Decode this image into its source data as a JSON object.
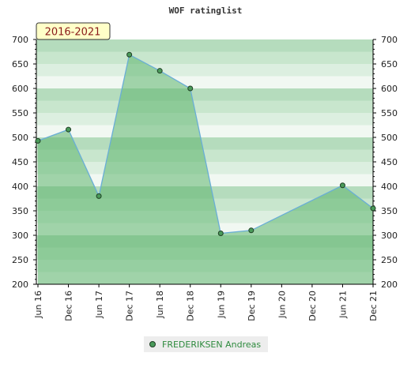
{
  "chart_data": {
    "type": "area",
    "title": "WOF ratinglist",
    "badge": "2016-2021",
    "xlabel": "",
    "ylabel": "",
    "x_ticks": [
      "Jun 16",
      "Dec 16",
      "Jun 17",
      "Dec 17",
      "Jun 18",
      "Dec 18",
      "Jun 19",
      "Dec 19",
      "Jun 20",
      "Dec 20",
      "Jun 21",
      "Dec 21"
    ],
    "ylim": [
      200,
      700
    ],
    "y_ticks": [
      200,
      250,
      300,
      350,
      400,
      450,
      500,
      550,
      600,
      650,
      700
    ],
    "y_tick_labels": [
      "200",
      "250",
      "300",
      "350",
      "400",
      "450",
      "500",
      "550",
      "600",
      "650",
      "700"
    ],
    "grid": true,
    "legend_position": "bottom-center",
    "series": [
      {
        "name": "FREDERIKSEN Andreas",
        "color": "#4a9a5a",
        "points": [
          {
            "x": "Jun 16",
            "y": 493
          },
          {
            "x": "Dec 16",
            "y": 516
          },
          {
            "x": "Jun 17",
            "y": 380
          },
          {
            "x": "Dec 17",
            "y": 669
          },
          {
            "x": "Jun 18",
            "y": 636
          },
          {
            "x": "Dec 18",
            "y": 600
          },
          {
            "x": "Jun 19",
            "y": 304
          },
          {
            "x": "Dec 19",
            "y": 310
          },
          {
            "x": "Jun 21",
            "y": 402
          },
          {
            "x": "Dec 21",
            "y": 355
          }
        ]
      }
    ]
  },
  "colors": {
    "line": "#6aaed6",
    "fill": "#5cb46e",
    "band_dark": "#b7dcc0",
    "band_light": "#f1f8f2",
    "badge_bg": "#ffffc8"
  }
}
